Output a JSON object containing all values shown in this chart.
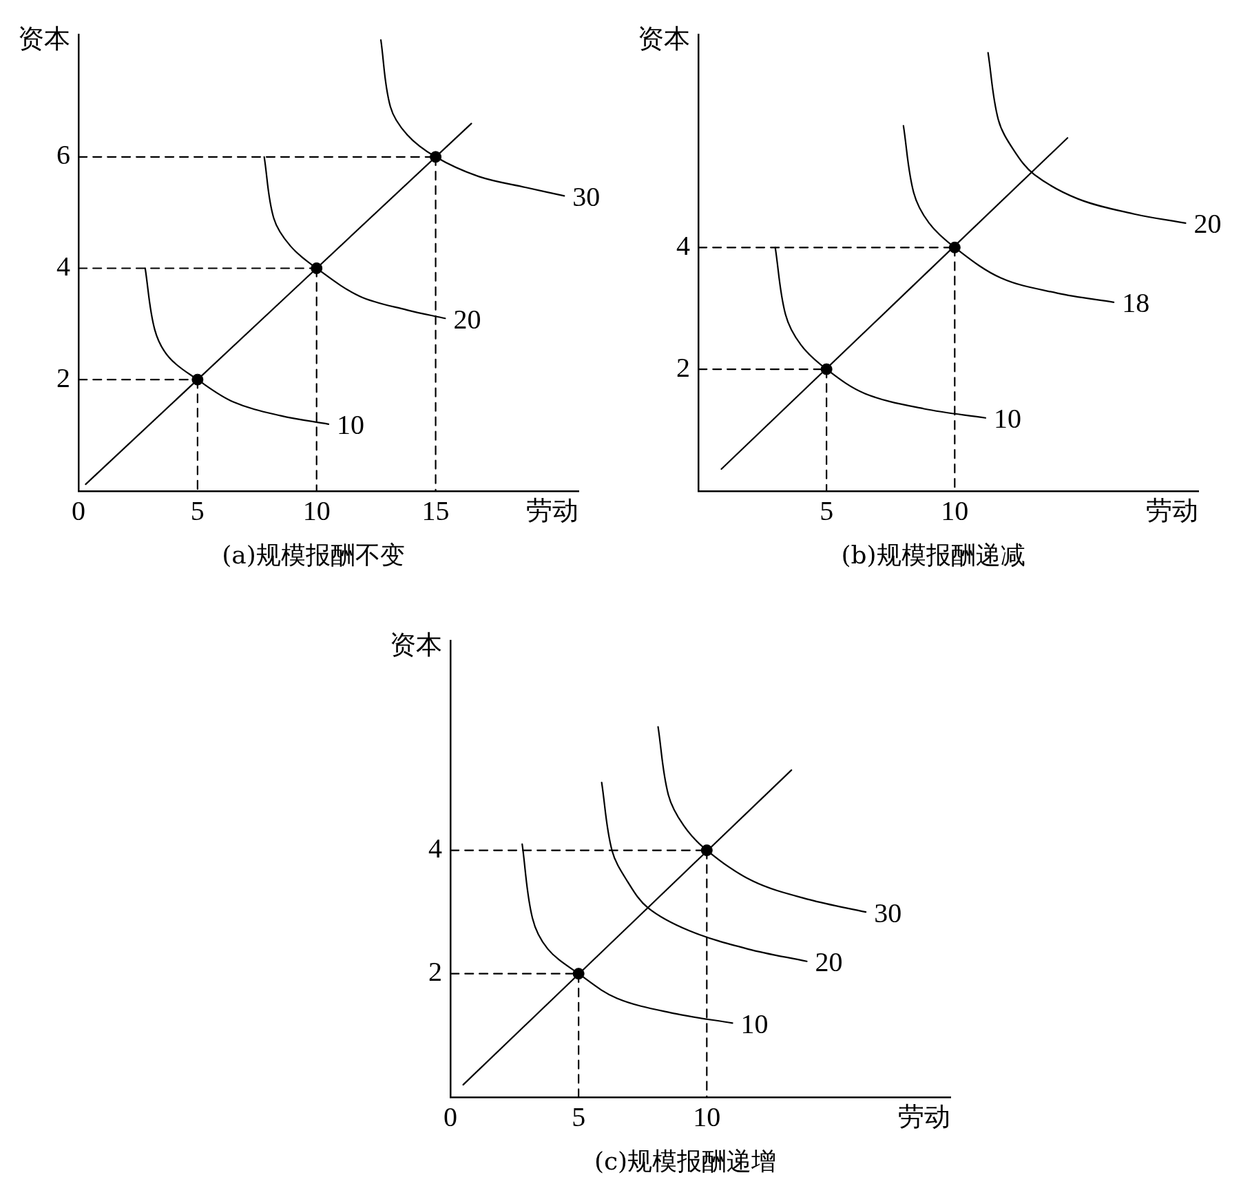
{
  "chart_data": [
    {
      "type": "line",
      "title": "(a)规模报酬不变",
      "xlabel": "劳动",
      "ylabel": "资本",
      "xlim": [
        0,
        21
      ],
      "ylim": [
        0,
        8.2
      ],
      "xticks": [
        0,
        5,
        10,
        15
      ],
      "yticks": [
        2,
        4,
        6
      ],
      "grid": false,
      "legend": false,
      "annotations": [
        {
          "text": "10",
          "x": 10.5,
          "y": 1.2
        },
        {
          "text": "20",
          "x": 15.4,
          "y": 3.1
        },
        {
          "text": "30",
          "x": 20.4,
          "y": 5.3
        }
      ],
      "series": [
        {
          "type": "line",
          "color": "#000000",
          "line_style": "solid",
          "x": [
            0.3,
            16.5
          ],
          "values": [
            0.12,
            6.6
          ]
        },
        {
          "type": "line",
          "color": "#000000",
          "line_style": "solid",
          "x": [
            2.8,
            3.2,
            3.8,
            5,
            6.5,
            8.5,
            10.5
          ],
          "values": [
            4.0,
            2.9,
            2.4,
            2.0,
            1.6,
            1.35,
            1.2
          ]
        },
        {
          "type": "line",
          "color": "#000000",
          "line_style": "solid",
          "x": [
            7.8,
            8.2,
            8.9,
            10,
            11.8,
            13.8,
            15.4
          ],
          "values": [
            6.0,
            4.9,
            4.4,
            4.0,
            3.5,
            3.25,
            3.1
          ]
        },
        {
          "type": "line",
          "color": "#000000",
          "line_style": "solid",
          "x": [
            12.7,
            13.1,
            13.8,
            15,
            16.8,
            18.8,
            20.4
          ],
          "values": [
            8.1,
            6.9,
            6.4,
            6.0,
            5.65,
            5.45,
            5.3
          ]
        },
        {
          "type": "line",
          "color": "#000000",
          "line_style": "dashed",
          "x": [
            0,
            5
          ],
          "values": [
            2,
            2
          ]
        },
        {
          "type": "line",
          "color": "#000000",
          "line_style": "dashed",
          "x": [
            5,
            5
          ],
          "values": [
            2,
            0
          ]
        },
        {
          "type": "line",
          "color": "#000000",
          "line_style": "dashed",
          "x": [
            0,
            10
          ],
          "values": [
            4,
            4
          ]
        },
        {
          "type": "line",
          "color": "#000000",
          "line_style": "dashed",
          "x": [
            10,
            10
          ],
          "values": [
            4,
            0
          ]
        },
        {
          "type": "line",
          "color": "#000000",
          "line_style": "dashed",
          "x": [
            0,
            15
          ],
          "values": [
            6,
            6
          ]
        },
        {
          "type": "line",
          "color": "#000000",
          "line_style": "dashed",
          "x": [
            15,
            15
          ],
          "values": [
            6,
            0
          ]
        },
        {
          "type": "scatter",
          "color": "#000000",
          "marker": "circle",
          "x": [
            5,
            10,
            15
          ],
          "values": [
            2,
            4,
            6
          ]
        }
      ]
    },
    {
      "type": "line",
      "title": "(b)规模报酬递减",
      "xlabel": "劳动",
      "ylabel": "资本",
      "xlim": [
        0,
        19.5
      ],
      "ylim": [
        0,
        7.5
      ],
      "xticks": [
        5,
        10
      ],
      "yticks": [
        2,
        4
      ],
      "grid": false,
      "legend": false,
      "annotations": [
        {
          "text": "10",
          "x": 11.2,
          "y": 1.2
        },
        {
          "text": "18",
          "x": 16.2,
          "y": 3.1
        },
        {
          "text": "20",
          "x": 19,
          "y": 4.4
        }
      ],
      "series": [
        {
          "type": "line",
          "color": "#000000",
          "line_style": "solid",
          "x": [
            0.9,
            14.4
          ],
          "values": [
            0.36,
            5.8
          ]
        },
        {
          "type": "line",
          "color": "#000000",
          "line_style": "solid",
          "x": [
            3.0,
            3.4,
            4,
            5,
            6.5,
            8.8,
            11.2
          ],
          "values": [
            4.0,
            2.9,
            2.4,
            2.0,
            1.6,
            1.35,
            1.2
          ]
        },
        {
          "type": "line",
          "color": "#000000",
          "line_style": "solid",
          "x": [
            8.0,
            8.4,
            9,
            10,
            11.8,
            14,
            16.2
          ],
          "values": [
            6.0,
            4.9,
            4.4,
            4.0,
            3.5,
            3.25,
            3.1
          ]
        },
        {
          "type": "line",
          "color": "#000000",
          "line_style": "solid",
          "x": [
            11.3,
            11.7,
            12.3,
            13.1,
            14.8,
            17,
            19
          ],
          "values": [
            7.2,
            6.1,
            5.6,
            5.2,
            4.8,
            4.55,
            4.4
          ]
        },
        {
          "type": "line",
          "color": "#000000",
          "line_style": "dashed",
          "x": [
            0,
            5
          ],
          "values": [
            2,
            2
          ]
        },
        {
          "type": "line",
          "color": "#000000",
          "line_style": "dashed",
          "x": [
            5,
            5
          ],
          "values": [
            2,
            0
          ]
        },
        {
          "type": "line",
          "color": "#000000",
          "line_style": "dashed",
          "x": [
            0,
            10
          ],
          "values": [
            4,
            4
          ]
        },
        {
          "type": "line",
          "color": "#000000",
          "line_style": "dashed",
          "x": [
            10,
            10
          ],
          "values": [
            4,
            0
          ]
        },
        {
          "type": "scatter",
          "color": "#000000",
          "marker": "circle",
          "x": [
            5,
            10
          ],
          "values": [
            2,
            4
          ]
        }
      ]
    },
    {
      "type": "line",
      "title": "(c)规模报酬递增",
      "xlabel": "劳动",
      "ylabel": "资本",
      "xlim": [
        0,
        19.5
      ],
      "ylim": [
        0,
        7.4
      ],
      "xticks": [
        0,
        5,
        10
      ],
      "yticks": [
        2,
        4
      ],
      "grid": false,
      "legend": false,
      "annotations": [
        {
          "text": "10",
          "x": 11,
          "y": 1.2
        },
        {
          "text": "20",
          "x": 13.9,
          "y": 2.2
        },
        {
          "text": "30",
          "x": 16.2,
          "y": 3.0
        }
      ],
      "series": [
        {
          "type": "line",
          "color": "#000000",
          "line_style": "solid",
          "x": [
            0.5,
            13.3
          ],
          "values": [
            0.2,
            5.3
          ]
        },
        {
          "type": "line",
          "color": "#000000",
          "line_style": "solid",
          "x": [
            2.8,
            3.2,
            3.8,
            5,
            6.5,
            8.8,
            11
          ],
          "values": [
            4.1,
            2.9,
            2.4,
            2.0,
            1.6,
            1.35,
            1.2
          ]
        },
        {
          "type": "line",
          "color": "#000000",
          "line_style": "solid",
          "x": [
            5.9,
            6.3,
            6.9,
            7.7,
            9.3,
            11.6,
            13.9
          ],
          "values": [
            5.1,
            4.0,
            3.5,
            3.07,
            2.7,
            2.4,
            2.2
          ]
        },
        {
          "type": "line",
          "color": "#000000",
          "line_style": "solid",
          "x": [
            8.1,
            8.5,
            9.1,
            10,
            11.8,
            14,
            16.2
          ],
          "values": [
            6.0,
            4.9,
            4.4,
            4.0,
            3.5,
            3.2,
            3.0
          ]
        },
        {
          "type": "line",
          "color": "#000000",
          "line_style": "dashed",
          "x": [
            0,
            5
          ],
          "values": [
            2,
            2
          ]
        },
        {
          "type": "line",
          "color": "#000000",
          "line_style": "dashed",
          "x": [
            5,
            5
          ],
          "values": [
            2,
            0
          ]
        },
        {
          "type": "line",
          "color": "#000000",
          "line_style": "dashed",
          "x": [
            0,
            10
          ],
          "values": [
            4,
            4
          ]
        },
        {
          "type": "line",
          "color": "#000000",
          "line_style": "dashed",
          "x": [
            10,
            10
          ],
          "values": [
            4,
            0
          ]
        },
        {
          "type": "scatter",
          "color": "#000000",
          "marker": "circle",
          "x": [
            5,
            10
          ],
          "values": [
            2,
            4
          ]
        }
      ]
    }
  ]
}
